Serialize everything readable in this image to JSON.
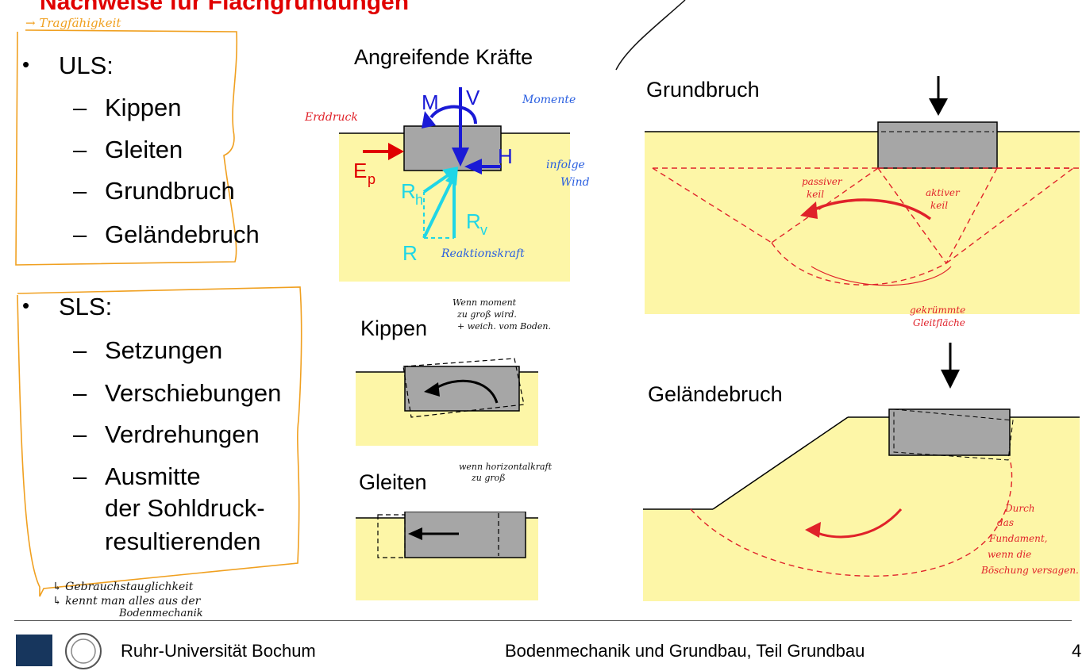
{
  "title": "Nachweise für Flachgründungen",
  "annotations": {
    "tragfaehigkeit": "→ Tragfähigkeit",
    "gebrauch_1": "↳ Gebrauchstauglichkeit",
    "gebrauch_2": "↳ kennt man alles aus der",
    "gebrauch_3": "Bodenmechanik",
    "momente": "Momente",
    "erddruck": "Erddruck",
    "infolge": "infolge",
    "wind": "Wind",
    "reaktionskraft": "Reaktionskraft",
    "kippen_note_1": "Wenn moment",
    "kippen_note_2": "zu groß wird.",
    "kippen_note_3": "+ weich. vom Boden.",
    "gleiten_note_1": "wenn horizontalkraft",
    "gleiten_note_2": "zu groß",
    "passiver_1": "passiver",
    "passiver_2": "keil",
    "aktiver_1": "aktiver",
    "aktiver_2": "keil",
    "gekruemmte_1": "gekrümmte",
    "gekruemmte_2": "Gleitfläche",
    "durch_1": "Durch",
    "durch_2": "das",
    "durch_3": "Fundament,",
    "durch_4": "wenn die",
    "durch_5": "Böschung versagen."
  },
  "uls": {
    "heading": "ULS:",
    "items": [
      "Kippen",
      "Gleiten",
      "Grundbruch",
      "Geländebruch"
    ]
  },
  "sls": {
    "heading": "SLS:",
    "items": [
      "Setzungen",
      "Verschiebungen",
      "Verdrehungen"
    ],
    "last_item": [
      "Ausmitte",
      "der Sohldruck-",
      "resultierenden"
    ]
  },
  "figures": {
    "forces_title": "Angreifende Kräfte",
    "kippen_title": "Kippen",
    "gleiten_title": "Gleiten",
    "grundbruch_title": "Grundbruch",
    "gelaendebruch_title": "Geländebruch",
    "labels": {
      "M": "M",
      "V": "V",
      "H": "H",
      "E": "E",
      "E_sub": "p",
      "Rh": "R",
      "Rh_sub": "h",
      "Rv": "R",
      "Rv_sub": "v",
      "R": "R"
    }
  },
  "footer": {
    "university": "Ruhr-Universität Bochum",
    "course": "Bodenmechanik und Grundbau, Teil Grundbau",
    "page": "4"
  },
  "colors": {
    "title_red": "#e00000",
    "soil": "#fdf6a7",
    "foundation": "#a6a6a6",
    "force_blue": "#1a1ad6",
    "reaction_cyan": "#1fd6e6",
    "hand_orange": "#f0a020",
    "hand_red": "#e0222a",
    "hand_blue": "#2a5fe0"
  }
}
